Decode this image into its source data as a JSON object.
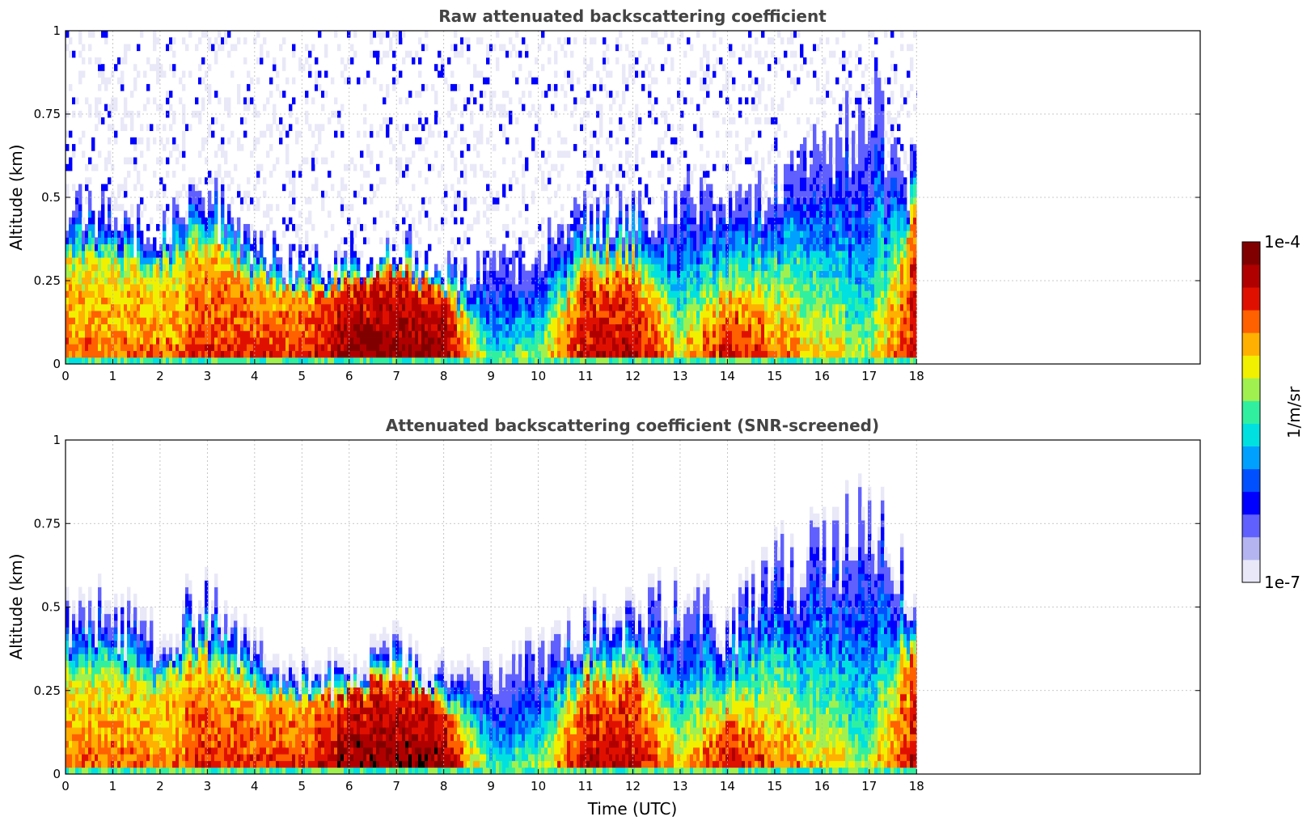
{
  "colormap": [
    "#e8e8f8",
    "#b4b4f0",
    "#6060ff",
    "#0000ff",
    "#0050ff",
    "#00a0ff",
    "#00e0e0",
    "#30f0a0",
    "#a0f050",
    "#f0f000",
    "#ffb000",
    "#ff6000",
    "#e01000",
    "#b00000",
    "#800000"
  ],
  "saturation_color": "#000000",
  "chart_data": [
    {
      "type": "heatmap",
      "title": "Raw attenuated backscattering coefficient",
      "xlabel": "",
      "ylabel": "Altitude (km)",
      "xlim": [
        0,
        24
      ],
      "ylim": [
        0,
        1
      ],
      "xticks": [
        "0",
        "1",
        "2",
        "3",
        "4",
        "5",
        "6",
        "7",
        "8",
        "9",
        "10",
        "11",
        "12",
        "13",
        "14",
        "15",
        "16",
        "17",
        "18"
      ],
      "yticks": [
        "0",
        "0.25",
        "0.5",
        "0.75",
        "1"
      ],
      "grid": true,
      "screened": false,
      "profile_times_utc": [
        0,
        1,
        2,
        3,
        4,
        5,
        6,
        7,
        8,
        9,
        10,
        11,
        12,
        13,
        14,
        15,
        16,
        17,
        18
      ],
      "signal_top_km": [
        0.5,
        0.45,
        0.4,
        0.52,
        0.35,
        0.3,
        0.3,
        0.36,
        0.28,
        0.3,
        0.35,
        0.45,
        0.45,
        0.5,
        0.45,
        0.6,
        0.65,
        0.8,
        0.55
      ],
      "core_top_km": [
        0.3,
        0.3,
        0.28,
        0.35,
        0.25,
        0.22,
        0.24,
        0.28,
        0.2,
        0.05,
        0.05,
        0.26,
        0.28,
        0.1,
        0.15,
        0.2,
        0.15,
        0.1,
        0.4
      ],
      "peak_level": [
        11,
        11,
        11,
        12,
        12,
        12,
        14,
        14,
        14,
        8,
        9,
        13,
        13,
        10,
        13,
        11,
        10,
        9,
        13
      ],
      "noise_top_km": 1.0,
      "data_end_utc": 18
    },
    {
      "type": "heatmap",
      "title": "Attenuated backscattering coefficient (SNR-screened)",
      "xlabel": "Time (UTC)",
      "ylabel": "Altitude (km)",
      "xlim": [
        0,
        24
      ],
      "ylim": [
        0,
        1
      ],
      "xticks": [
        "0",
        "1",
        "2",
        "3",
        "4",
        "5",
        "6",
        "7",
        "8",
        "9",
        "10",
        "11",
        "12",
        "13",
        "14",
        "15",
        "16",
        "17",
        "18"
      ],
      "yticks": [
        "0",
        "0.25",
        "0.5",
        "0.75",
        "1"
      ],
      "grid": true,
      "screened": true,
      "profile_times_utc": [
        0,
        1,
        2,
        3,
        4,
        5,
        6,
        7,
        8,
        9,
        10,
        11,
        12,
        13,
        14,
        15,
        16,
        17,
        18
      ],
      "signal_top_km": [
        0.5,
        0.45,
        0.4,
        0.52,
        0.35,
        0.3,
        0.3,
        0.36,
        0.28,
        0.3,
        0.35,
        0.45,
        0.45,
        0.5,
        0.45,
        0.6,
        0.65,
        0.8,
        0.55
      ],
      "core_top_km": [
        0.3,
        0.3,
        0.28,
        0.35,
        0.25,
        0.22,
        0.24,
        0.28,
        0.2,
        0.05,
        0.05,
        0.26,
        0.28,
        0.1,
        0.15,
        0.2,
        0.15,
        0.1,
        0.4
      ],
      "peak_level": [
        11,
        11,
        11,
        12,
        12,
        12,
        14,
        14,
        14,
        8,
        9,
        13,
        13,
        10,
        13,
        11,
        10,
        9,
        13
      ],
      "data_end_utc": 18
    }
  ],
  "colorbar": {
    "max_label": "1e-4",
    "min_label": "1e-7",
    "unit_label": "1/m/sr"
  }
}
